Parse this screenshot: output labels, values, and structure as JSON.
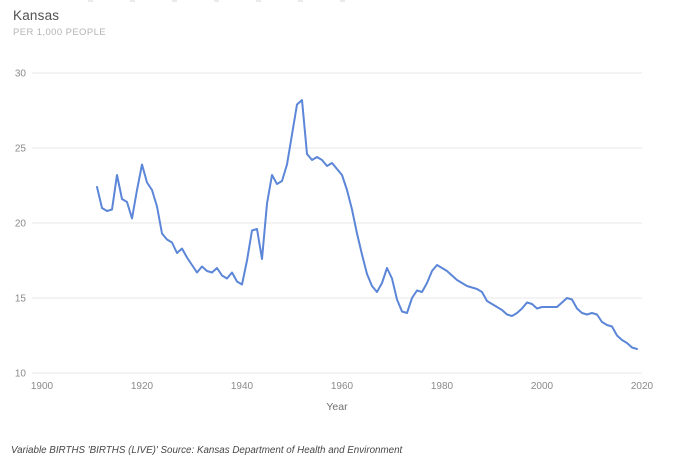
{
  "header": {
    "title": "Kansas",
    "subtitle": "PER 1,000 PEOPLE"
  },
  "footer": {
    "note": "Variable BIRTHS 'BIRTHS (LIVE)' Source: Kansas Department of Health and Environment"
  },
  "chart_data": {
    "type": "line",
    "title": "Kansas",
    "subtitle": "PER 1,000 PEOPLE",
    "xlabel": "Year",
    "ylabel": "PER 1,000 PEOPLE",
    "grid": "horizontal",
    "legend": "none",
    "line_color": "#5c86d7",
    "grid_color": "#e7e7e7",
    "tick_color": "#8a8a8a",
    "x_ticks": [
      1900,
      1920,
      1940,
      1960,
      1980,
      2000,
      2020
    ],
    "y_ticks": [
      10,
      15,
      20,
      25,
      30
    ],
    "xlim": [
      1898,
      2022
    ],
    "ylim": [
      10,
      30
    ],
    "series": [
      {
        "name": "Births per 1,000 people",
        "x": [
          1911,
          1912,
          1913,
          1914,
          1915,
          1916,
          1917,
          1918,
          1919,
          1920,
          1921,
          1922,
          1923,
          1924,
          1925,
          1926,
          1927,
          1928,
          1929,
          1930,
          1931,
          1932,
          1933,
          1934,
          1935,
          1936,
          1937,
          1938,
          1939,
          1940,
          1941,
          1942,
          1943,
          1944,
          1945,
          1946,
          1947,
          1948,
          1949,
          1950,
          1951,
          1952,
          1953,
          1954,
          1955,
          1956,
          1957,
          1958,
          1959,
          1960,
          1961,
          1962,
          1963,
          1964,
          1965,
          1966,
          1967,
          1968,
          1969,
          1970,
          1971,
          1972,
          1973,
          1974,
          1975,
          1976,
          1977,
          1978,
          1979,
          1980,
          1981,
          1982,
          1983,
          1984,
          1985,
          1986,
          1987,
          1988,
          1989,
          1990,
          1991,
          1992,
          1993,
          1994,
          1995,
          1996,
          1997,
          1998,
          1999,
          2000,
          2001,
          2002,
          2003,
          2004,
          2005,
          2006,
          2007,
          2008,
          2009,
          2010,
          2011,
          2012,
          2013,
          2014,
          2015,
          2016,
          2017,
          2018,
          2019
        ],
        "values": [
          22.4,
          21.0,
          20.8,
          20.9,
          23.2,
          21.6,
          21.4,
          20.3,
          22.2,
          23.9,
          22.7,
          22.2,
          21.1,
          19.3,
          18.9,
          18.7,
          18.0,
          18.3,
          17.7,
          17.2,
          16.7,
          17.1,
          16.8,
          16.7,
          17.0,
          16.5,
          16.3,
          16.7,
          16.1,
          15.9,
          17.5,
          19.5,
          19.6,
          17.6,
          21.3,
          23.2,
          22.6,
          22.8,
          23.9,
          25.9,
          27.9,
          28.2,
          24.6,
          24.2,
          24.4,
          24.2,
          23.8,
          24.0,
          23.6,
          23.2,
          22.2,
          20.9,
          19.3,
          17.9,
          16.6,
          15.8,
          15.4,
          16.0,
          17.0,
          16.3,
          14.9,
          14.1,
          14.0,
          15.0,
          15.5,
          15.4,
          16.0,
          16.8,
          17.2,
          17.0,
          16.8,
          16.5,
          16.2,
          16.0,
          15.8,
          15.7,
          15.6,
          15.4,
          14.8,
          14.6,
          14.4,
          14.2,
          13.9,
          13.8,
          14.0,
          14.3,
          14.7,
          14.6,
          14.3,
          14.4,
          14.4,
          14.4,
          14.4,
          14.7,
          15.0,
          14.9,
          14.3,
          14.0,
          13.9,
          14.0,
          13.9,
          13.4,
          13.2,
          13.1,
          12.5,
          12.2,
          12.0,
          11.7,
          11.6
        ]
      }
    ]
  }
}
